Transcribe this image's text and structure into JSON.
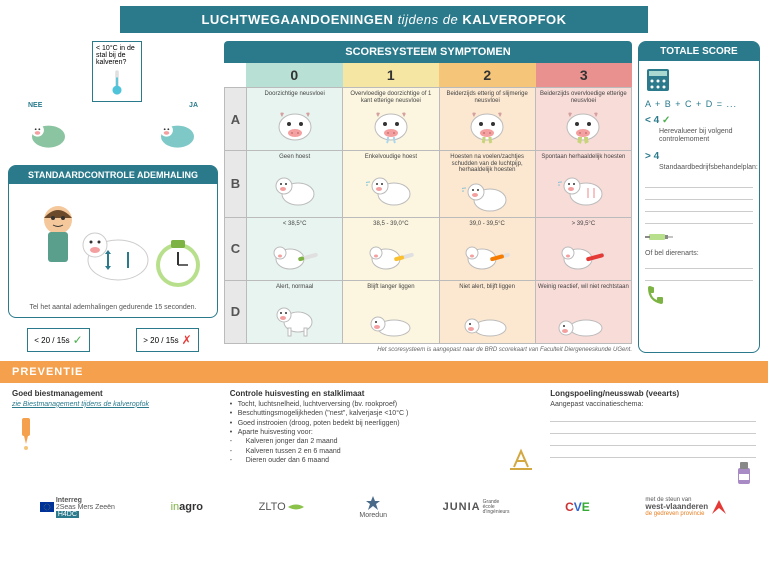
{
  "title": {
    "pre": "LUCHTWEGAANDOENINGEN",
    "mid": "tijdens de",
    "post": "KALVEROPFOK"
  },
  "flow": {
    "temp_question": "< 10°C in de stal bij de kalveren?",
    "nee": "NEE",
    "ja": "JA",
    "std_title": "STANDAARDCONTROLE ADEMHALING",
    "std_text": "Tel het aantal ademhalingen gedurende 15 seconden.",
    "breath_ok": "< 20 / 15s",
    "breath_bad": "> 20 / 15s"
  },
  "score": {
    "header": "SCORESYSTEEM SYMPTOMEN",
    "nums": [
      "0",
      "1",
      "2",
      "3"
    ],
    "rows": [
      {
        "label": "A",
        "cells": [
          "Doorzichtige neusvloei",
          "Overvloedige doorzichtige of 1 kant etterige neusvloei",
          "Beiderzijds etterig of slijmerige neusvloei",
          "Beiderzijds overvloedige etterige neusvloei"
        ]
      },
      {
        "label": "B",
        "cells": [
          "Geen hoest",
          "Enkelvoudige hoest",
          "Hoesten na voelen/zachtjes schudden van de luchtpijp, herhaaldelijk hoesten",
          "Spontaan herhaaldelijk hoesten"
        ]
      },
      {
        "label": "C",
        "cells": [
          "< 38,5°C",
          "38,5 - 39,0°C",
          "39,0 - 39,5°C",
          "> 39,5°C"
        ]
      },
      {
        "label": "D",
        "cells": [
          "Alert, normaal",
          "Blijft langer liggen",
          "Niet alert, blijft liggen",
          "Weinig reactief, wil niet rechtstaan"
        ]
      }
    ],
    "footnote": "Het scoresysteem is aangepast naar de BRD scorekaart van Faculteit Diergeneeskunde UGent."
  },
  "total": {
    "header": "TOTALE SCORE",
    "formula": "A + B + C + D = ...",
    "lt4": "< 4",
    "lt4_txt": "Herevalueer bij volgend controlemoment",
    "gt4": "> 4",
    "gt4_txt": "Standaardbedrijfsbehandelplan:",
    "or": "Of bel dierenarts:"
  },
  "prev": {
    "header": "PREVENTIE",
    "col1_h": "Goed biestmanagement",
    "col1_link": "zie Biestmanagement tijdens de kalveropfok",
    "col2_h": "Controle huisvesting en stalklimaat",
    "col2_items": [
      "Tocht, luchtsnelheid, luchtverversing (bv. rookproef)",
      "Beschuttingsmogelijkheden (\"nest\", kalverjasje <10°C )",
      "Goed instrooien (droog, poten bedekt bij neerliggen)",
      "Aparte huisvesting voor:"
    ],
    "col2_sub": [
      "Kalveren jonger dan 2 maand",
      "Kalveren tussen 2 en 6 maand",
      "Dieren ouder dan 6 maand"
    ],
    "col3_h": "Longspoeling/neusswab (veearts)",
    "col3_txt": "Aangepast vaccinatieschema:"
  },
  "logos": [
    "Interreg 2Seas Mers Zeeën H4DC",
    "inagro",
    "ZLTO",
    "Moredun",
    "JUNIA Grande école d'ingénieurs",
    "CVE",
    "west-vlaanderen de gedreven provincie"
  ],
  "colors": {
    "teal": "#2a7a8c",
    "orange": "#f5a04c",
    "c0": "#b8e0d4",
    "c1": "#f5e6a3",
    "c2": "#f5c67a",
    "c3": "#e8918e"
  }
}
